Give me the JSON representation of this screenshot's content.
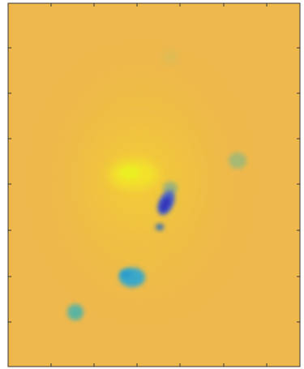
{
  "chart_data": {
    "type": "image"
  }
}
